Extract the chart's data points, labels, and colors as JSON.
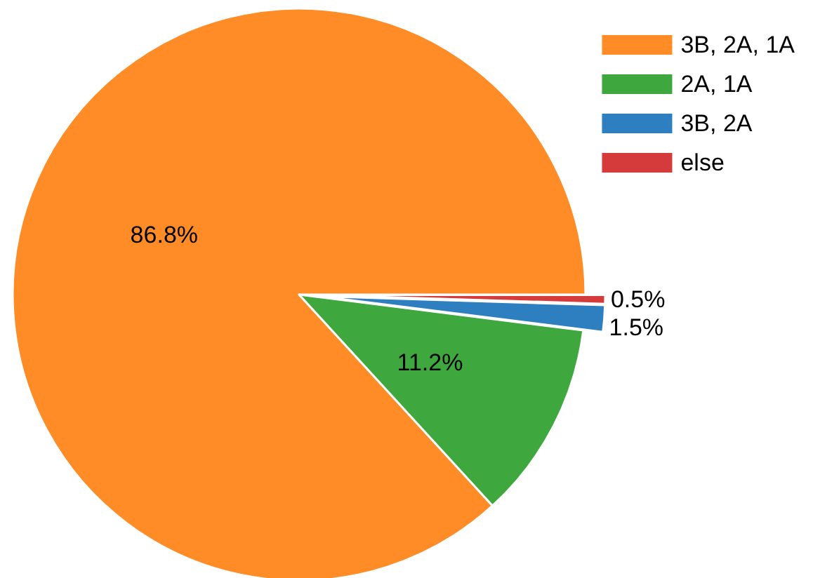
{
  "chart_data": {
    "type": "pie",
    "categories": [
      "3B, 2A, 1A",
      "2A, 1A",
      "3B, 2A",
      "else"
    ],
    "values": [
      86.8,
      11.2,
      1.5,
      0.5
    ],
    "colors": [
      "#ff8c26",
      "#3ea83e",
      "#2e7fc0",
      "#d63b3b"
    ],
    "value_labels": [
      "86.8%",
      "11.2%",
      "1.5%",
      "0.5%"
    ],
    "legend": "top right"
  }
}
